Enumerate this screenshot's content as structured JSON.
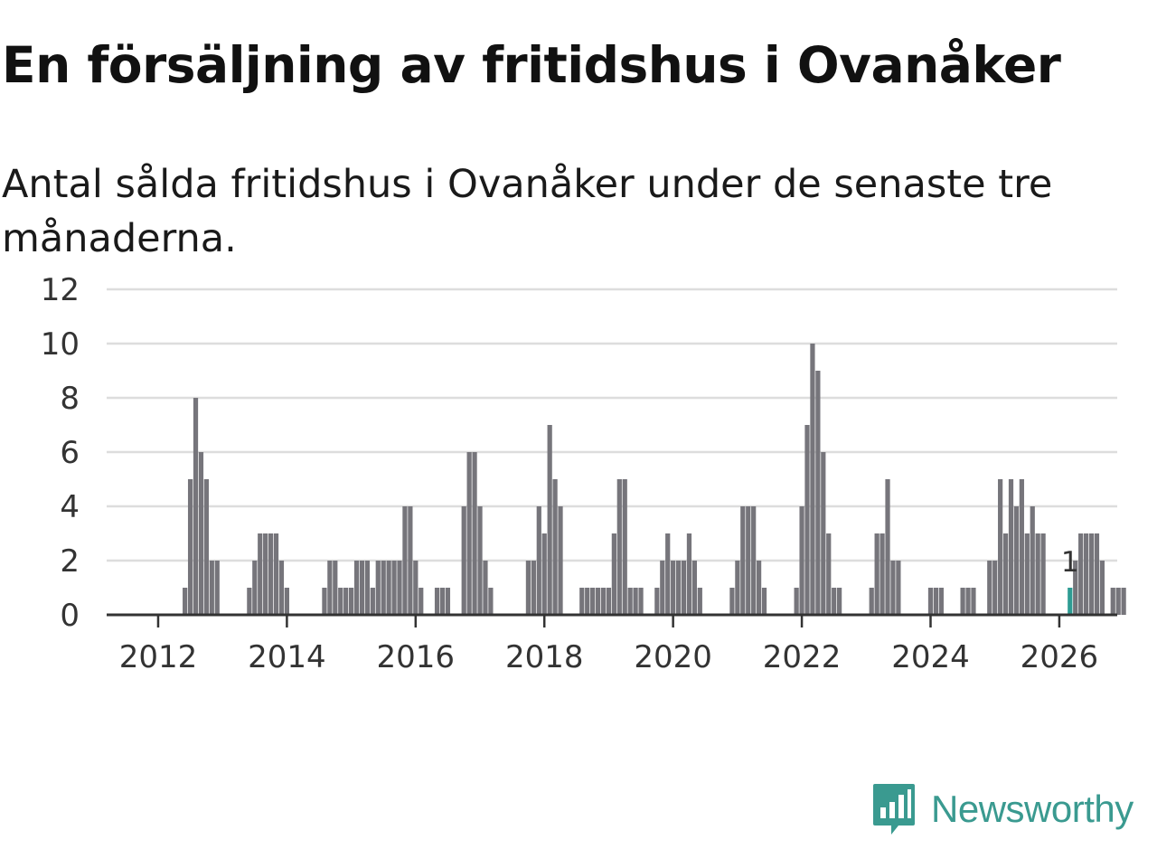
{
  "title": "En försäljning av fritidshus i Ovanåker",
  "subtitle": "Antal sålda fritidshus i Ovanåker under de senaste tre månaderna.",
  "brand": {
    "name": "Newsworthy",
    "icon": "newsworthy-logo-icon",
    "color": "#3a9a90"
  },
  "colors": {
    "bar": "#76757b",
    "highlight": "#2e9c93",
    "grid": "#dddddd",
    "axis": "#333333"
  },
  "chart_data": {
    "type": "bar",
    "title": "En försäljning av fritidshus i Ovanåker",
    "subtitle": "Antal sålda fritidshus i Ovanåker under de senaste tre månaderna.",
    "xlabel": "",
    "ylabel": "",
    "x_start": 2011.25,
    "x_step": 0.0833333,
    "xlim": [
      2011.2,
      2026.9
    ],
    "ylim": [
      0,
      12
    ],
    "y_ticks": [
      0,
      2,
      4,
      6,
      8,
      10,
      12
    ],
    "x_ticks": [
      2012,
      2014,
      2016,
      2018,
      2020,
      2022,
      2024,
      2026
    ],
    "x_tick_labels": [
      "2012",
      "2014",
      "2016",
      "2018",
      "2020",
      "2022",
      "2024",
      "2026"
    ],
    "grid": true,
    "values": [
      0,
      0,
      0,
      0,
      0,
      0,
      0,
      0,
      0,
      0,
      0,
      0,
      0,
      0,
      1,
      5,
      8,
      6,
      5,
      2,
      2,
      0,
      0,
      0,
      0,
      0,
      1,
      2,
      3,
      3,
      3,
      3,
      2,
      1,
      0,
      0,
      0,
      0,
      0,
      0,
      1,
      2,
      2,
      1,
      1,
      1,
      2,
      2,
      2,
      1,
      2,
      2,
      2,
      2,
      2,
      4,
      4,
      2,
      1,
      0,
      0,
      1,
      1,
      1,
      0,
      0,
      4,
      6,
      6,
      4,
      2,
      1,
      0,
      0,
      0,
      0,
      0,
      0,
      2,
      2,
      4,
      3,
      7,
      5,
      4,
      0,
      0,
      0,
      1,
      1,
      1,
      1,
      1,
      1,
      3,
      5,
      5,
      1,
      1,
      1,
      0,
      0,
      1,
      2,
      3,
      2,
      2,
      2,
      3,
      2,
      1,
      0,
      0,
      0,
      0,
      0,
      1,
      2,
      4,
      4,
      4,
      2,
      1,
      0,
      0,
      0,
      0,
      0,
      1,
      4,
      7,
      10,
      9,
      6,
      3,
      1,
      1,
      0,
      0,
      0,
      0,
      0,
      1,
      3,
      3,
      5,
      2,
      2,
      0,
      0,
      0,
      0,
      0,
      1,
      1,
      1,
      0,
      0,
      0,
      1,
      1,
      1,
      0,
      0,
      2,
      2,
      5,
      3,
      5,
      4,
      5,
      3,
      4,
      3,
      3,
      0,
      0,
      0,
      0,
      1,
      2,
      3,
      3,
      3,
      3,
      2,
      0,
      1,
      1,
      1
    ],
    "highlight_index": 179,
    "annotations": [
      {
        "index": 179,
        "label": "1"
      }
    ]
  }
}
